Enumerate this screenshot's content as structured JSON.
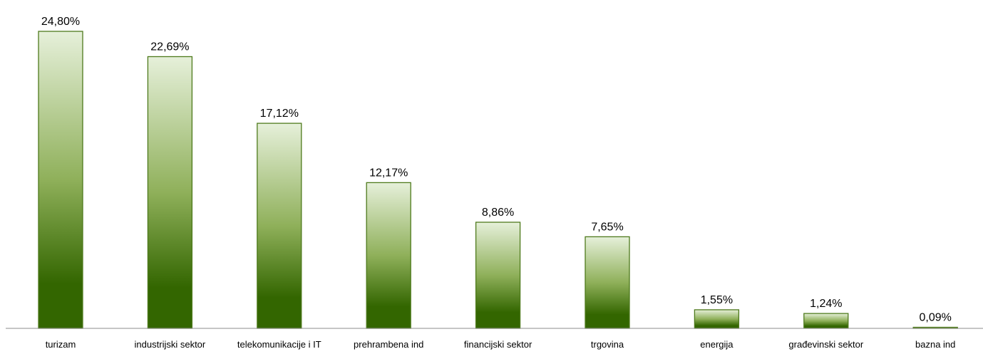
{
  "chart_data": {
    "type": "bar",
    "categories": [
      "turizam",
      "industrijski sektor",
      "telekomunikacije i IT",
      "prehrambena ind",
      "financijski sektor",
      "trgovina",
      "energija",
      "građevinski sektor",
      "bazna ind"
    ],
    "values": [
      24.8,
      22.69,
      17.12,
      12.17,
      8.86,
      7.65,
      1.55,
      1.24,
      0.09
    ],
    "data_labels": [
      "24,80%",
      "22,69%",
      "17,12%",
      "12,17%",
      "8,86%",
      "7,65%",
      "1,55%",
      "1,24%",
      "0,09%"
    ],
    "ylim": [
      0,
      24.8
    ],
    "grid": false,
    "legend": "none",
    "colors": {
      "bar_top": "#e6f0da",
      "bar_mid": "#8fb05a",
      "bar_bottom": "#336600",
      "bar_border": "#4e7a1c",
      "axis": "#8c8c8c"
    }
  }
}
